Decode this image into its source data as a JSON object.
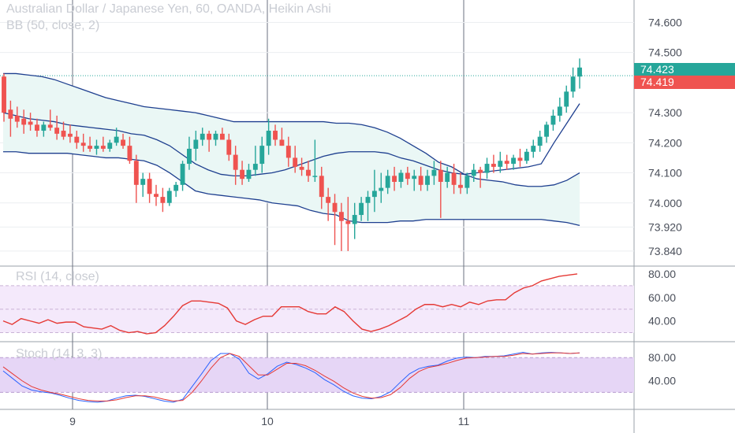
{
  "header": {
    "title": "Australian Dollar / Japanese Yen, 60, OANDA, Heikin Ashi",
    "bb_label": "BB (50, close, 2)",
    "rsi_label": "RSI (14, close)",
    "stoch_label": "Stoch (14, 3, 3)"
  },
  "price_tags": {
    "last": "74.423",
    "last_color": "#26a69a",
    "prev": "74.419",
    "prev_color": "#ef5350"
  },
  "chart_data": [
    {
      "type": "candlestick",
      "title": "Australian Dollar / Japanese Yen, 60, OANDA, Heikin Ashi",
      "x_ticks": [
        "9",
        "10",
        "11"
      ],
      "y_ticks": [
        "74.600",
        "74.500",
        "74.300",
        "74.200",
        "74.100",
        "74.000",
        "73.920",
        "73.840"
      ],
      "ylim": [
        73.79,
        74.63
      ],
      "colors": {
        "up": "#26a69a",
        "down": "#ef5350",
        "band": "#1e3f8f",
        "band_fill": "#eaf7f5"
      },
      "candles": [
        [
          74.42,
          74.43,
          74.27,
          74.3
        ],
        [
          74.31,
          74.34,
          74.22,
          74.28
        ],
        [
          74.29,
          74.32,
          74.25,
          74.27
        ],
        [
          74.28,
          74.31,
          74.23,
          74.26
        ],
        [
          74.27,
          74.3,
          74.24,
          74.26
        ],
        [
          74.26,
          74.28,
          74.22,
          74.24
        ],
        [
          74.24,
          74.27,
          74.22,
          74.26
        ],
        [
          74.26,
          74.31,
          74.24,
          74.25
        ],
        [
          74.25,
          74.29,
          74.21,
          74.23
        ],
        [
          74.24,
          74.27,
          74.21,
          74.22
        ],
        [
          74.23,
          74.26,
          74.2,
          74.22
        ],
        [
          74.22,
          74.24,
          74.18,
          74.2
        ],
        [
          74.2,
          74.23,
          74.17,
          74.19
        ],
        [
          74.19,
          74.22,
          74.17,
          74.18
        ],
        [
          74.18,
          74.21,
          74.16,
          74.19
        ],
        [
          74.19,
          74.22,
          74.17,
          74.18
        ],
        [
          74.18,
          74.21,
          74.17,
          74.2
        ],
        [
          74.2,
          74.25,
          74.19,
          74.22
        ],
        [
          74.21,
          74.23,
          74.18,
          74.19
        ],
        [
          74.19,
          74.22,
          74.13,
          74.14
        ],
        [
          74.14,
          74.16,
          74.0,
          74.06
        ],
        [
          74.06,
          74.1,
          74.02,
          74.08
        ],
        [
          74.08,
          74.1,
          74.0,
          74.03
        ],
        [
          74.03,
          74.06,
          73.99,
          74.02
        ],
        [
          74.02,
          74.05,
          73.97,
          74.0
        ],
        [
          74.0,
          74.05,
          73.99,
          74.04
        ],
        [
          74.04,
          74.07,
          74.02,
          74.06
        ],
        [
          74.06,
          74.14,
          74.04,
          74.13
        ],
        [
          74.13,
          74.22,
          74.11,
          74.18
        ],
        [
          74.18,
          74.24,
          74.14,
          74.21
        ],
        [
          74.21,
          74.25,
          74.19,
          74.23
        ],
        [
          74.23,
          74.24,
          74.17,
          74.21
        ],
        [
          74.21,
          74.24,
          74.19,
          74.23
        ],
        [
          74.23,
          74.25,
          74.21,
          74.21
        ],
        [
          74.21,
          74.23,
          74.14,
          74.16
        ],
        [
          74.16,
          74.19,
          74.06,
          74.11
        ],
        [
          74.11,
          74.14,
          74.06,
          74.08
        ],
        [
          74.08,
          74.13,
          74.07,
          74.11
        ],
        [
          74.11,
          74.19,
          74.09,
          74.13
        ],
        [
          74.13,
          74.22,
          74.1,
          74.19
        ],
        [
          74.19,
          74.28,
          74.16,
          74.24
        ],
        [
          74.24,
          74.26,
          74.19,
          74.21
        ],
        [
          74.21,
          74.25,
          74.19,
          74.19
        ],
        [
          74.19,
          74.22,
          74.12,
          74.15
        ],
        [
          74.15,
          74.19,
          74.1,
          74.12
        ],
        [
          74.12,
          74.15,
          74.09,
          74.11
        ],
        [
          74.11,
          74.14,
          74.07,
          74.09
        ],
        [
          74.09,
          74.21,
          74.07,
          74.09
        ],
        [
          74.09,
          74.12,
          73.98,
          74.02
        ],
        [
          74.02,
          74.05,
          73.94,
          74.0
        ],
        [
          74.0,
          74.03,
          73.86,
          73.97
        ],
        [
          73.97,
          74.0,
          73.84,
          73.94
        ],
        [
          73.94,
          74.02,
          73.84,
          73.93
        ],
        [
          73.93,
          74.0,
          73.88,
          73.96
        ],
        [
          73.96,
          74.02,
          73.94,
          74.0
        ],
        [
          74.0,
          74.04,
          73.94,
          74.02
        ],
        [
          74.02,
          74.11,
          73.97,
          74.04
        ],
        [
          74.04,
          74.1,
          74.0,
          74.05
        ],
        [
          74.05,
          74.11,
          74.03,
          74.09
        ],
        [
          74.09,
          74.12,
          74.04,
          74.07
        ],
        [
          74.07,
          74.11,
          74.05,
          74.1
        ],
        [
          74.1,
          74.12,
          74.06,
          74.08
        ],
        [
          74.08,
          74.11,
          74.04,
          74.09
        ],
        [
          74.09,
          74.12,
          74.04,
          74.06
        ],
        [
          74.06,
          74.11,
          74.04,
          74.09
        ],
        [
          74.09,
          74.14,
          74.06,
          74.11
        ],
        [
          74.11,
          74.14,
          73.95,
          74.07
        ],
        [
          74.07,
          74.12,
          74.05,
          74.1
        ],
        [
          74.1,
          74.13,
          74.03,
          74.06
        ],
        [
          74.06,
          74.1,
          74.03,
          74.05
        ],
        [
          74.05,
          74.1,
          74.03,
          74.09
        ],
        [
          74.09,
          74.13,
          74.07,
          74.11
        ],
        [
          74.11,
          74.12,
          74.05,
          74.1
        ],
        [
          74.1,
          74.15,
          74.08,
          74.13
        ],
        [
          74.13,
          74.16,
          74.1,
          74.12
        ],
        [
          74.12,
          74.17,
          74.1,
          74.14
        ],
        [
          74.14,
          74.16,
          74.11,
          74.13
        ],
        [
          74.13,
          74.16,
          74.11,
          74.15
        ],
        [
          74.15,
          74.18,
          74.12,
          74.14
        ],
        [
          74.14,
          74.18,
          74.13,
          74.17
        ],
        [
          74.17,
          74.21,
          74.15,
          74.19
        ],
        [
          74.19,
          74.24,
          74.17,
          74.22
        ],
        [
          74.22,
          74.27,
          74.2,
          74.26
        ],
        [
          74.26,
          74.31,
          74.24,
          74.29
        ],
        [
          74.29,
          74.35,
          74.27,
          74.32
        ],
        [
          74.32,
          74.39,
          74.3,
          74.37
        ],
        [
          74.37,
          74.45,
          74.35,
          74.42
        ],
        [
          74.42,
          74.48,
          74.38,
          74.45
        ]
      ],
      "bb_middle": [
        74.3,
        74.29,
        74.28,
        74.275,
        74.27,
        74.26,
        74.255,
        74.25,
        74.245,
        74.24,
        74.23,
        74.225,
        74.21,
        74.19,
        74.16,
        74.13,
        74.11,
        74.095,
        74.09,
        74.09,
        74.095,
        74.1,
        74.11,
        74.125,
        74.14,
        74.155,
        74.165,
        74.17,
        74.17,
        74.17,
        74.165,
        74.15,
        74.14,
        74.125,
        74.11,
        74.1,
        74.095,
        74.1,
        74.105,
        74.11,
        74.115,
        74.12,
        74.13,
        74.2,
        74.265,
        74.33
      ],
      "bb_upper": [
        74.43,
        74.43,
        74.425,
        74.42,
        74.41,
        74.395,
        74.38,
        74.365,
        74.35,
        74.34,
        74.33,
        74.32,
        74.315,
        74.31,
        74.305,
        74.3,
        74.29,
        74.28,
        74.27,
        74.27,
        74.27,
        74.27,
        74.27,
        74.27,
        74.27,
        74.27,
        74.265,
        74.265,
        74.26,
        74.25,
        74.235,
        74.215,
        74.19,
        74.165,
        74.135,
        74.12,
        74.095,
        74.08,
        74.075,
        74.07,
        74.06,
        74.055,
        74.055,
        74.06,
        74.075,
        74.1
      ],
      "bb_lower": [
        74.17,
        74.17,
        74.165,
        74.165,
        74.165,
        74.165,
        74.16,
        74.155,
        74.15,
        74.15,
        74.145,
        74.14,
        74.125,
        74.1,
        74.07,
        74.04,
        74.03,
        74.025,
        74.02,
        74.015,
        74.01,
        74.0,
        73.995,
        73.99,
        73.975,
        73.965,
        73.96,
        73.94,
        73.935,
        73.935,
        73.935,
        73.94,
        73.94,
        73.945,
        73.945,
        73.945,
        73.945,
        73.945,
        73.945,
        73.945,
        73.945,
        73.945,
        73.945,
        73.94,
        73.935,
        73.925
      ]
    },
    {
      "type": "line",
      "title": "RSI (14, close)",
      "y_ticks": [
        "80.00",
        "60.00",
        "40.00"
      ],
      "ylim": [
        25,
        84
      ],
      "band": [
        30,
        70
      ],
      "color": "#e53935",
      "values": [
        40,
        37,
        42,
        40,
        38,
        41,
        38,
        39,
        39,
        35,
        34,
        33,
        36,
        32,
        30,
        31,
        29,
        30,
        36,
        44,
        53,
        57,
        57,
        56,
        55,
        51,
        40,
        37,
        41,
        44,
        44,
        52,
        52,
        52,
        48,
        46,
        46,
        52,
        48,
        40,
        33,
        31,
        33,
        36,
        40,
        44,
        50,
        54,
        54,
        52,
        54,
        52,
        56,
        54,
        57,
        58,
        58,
        64,
        68,
        70,
        74,
        76,
        78,
        79,
        80
      ]
    },
    {
      "type": "line",
      "title": "Stoch (14, 3, 3)",
      "y_ticks": [
        "80.00",
        "40.00"
      ],
      "ylim": [
        -4,
        102
      ],
      "band": [
        20,
        80
      ],
      "series": [
        {
          "color": "#2962ff",
          "values": [
            57,
            44,
            31,
            24,
            21,
            19,
            15,
            10,
            6,
            4,
            3,
            5,
            10,
            14,
            15,
            13,
            9,
            5,
            3,
            8,
            30,
            52,
            75,
            87,
            87,
            77,
            53,
            43,
            52,
            65,
            72,
            68,
            62,
            54,
            42,
            33,
            22,
            14,
            10,
            9,
            13,
            21,
            37,
            52,
            61,
            65,
            67,
            74,
            79,
            81,
            80,
            82,
            82,
            83,
            86,
            89,
            86,
            88,
            89,
            88,
            87,
            88
          ]
        },
        {
          "color": "#e53935",
          "values": [
            64,
            52,
            40,
            30,
            24,
            20,
            17,
            13,
            9,
            6,
            5,
            5,
            7,
            11,
            14,
            14,
            12,
            8,
            5,
            6,
            20,
            40,
            62,
            80,
            87,
            82,
            66,
            50,
            50,
            60,
            70,
            70,
            66,
            58,
            48,
            39,
            28,
            19,
            13,
            10,
            11,
            16,
            28,
            44,
            56,
            63,
            66,
            70,
            75,
            79,
            80,
            81,
            82,
            82,
            84,
            87,
            86,
            87,
            88,
            88,
            87,
            88
          ]
        }
      ]
    }
  ]
}
